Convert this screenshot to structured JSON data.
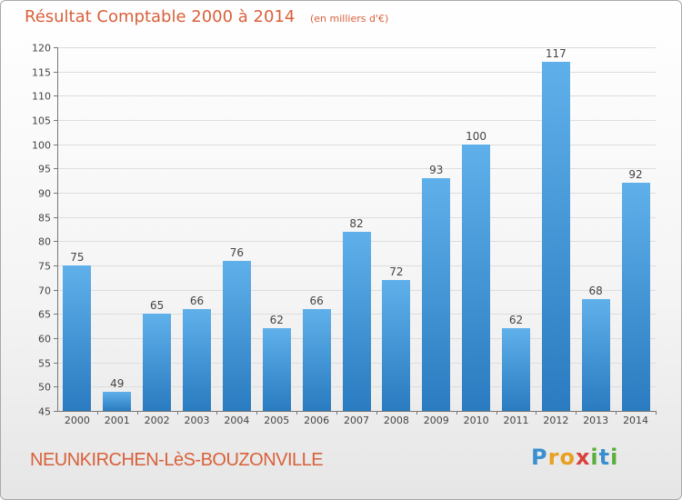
{
  "header": {
    "title": "Résultat Comptable 2000 à 2014",
    "subtitle": "(en milliers d'€)"
  },
  "footer": {
    "commune": "NEUNKIRCHEN-LèS-BOUZONVILLE",
    "logo": "Proxiti"
  },
  "colors": {
    "accent": "#d9603a",
    "bar_light": "#5fb0ea",
    "bar_dark": "#2a7bc0",
    "grid": "#dddddd",
    "axis": "#777777"
  },
  "chart_data": {
    "type": "bar",
    "title": "Résultat Comptable 2000 à 2014",
    "subtitle": "(en milliers d'€)",
    "xlabel": "",
    "ylabel": "",
    "categories": [
      "2000",
      "2001",
      "2002",
      "2003",
      "2004",
      "2005",
      "2006",
      "2007",
      "2008",
      "2009",
      "2010",
      "2011",
      "2012",
      "2013",
      "2014"
    ],
    "values": [
      75,
      49,
      65,
      66,
      76,
      62,
      66,
      82,
      72,
      93,
      100,
      62,
      117,
      68,
      92
    ],
    "ylim": [
      45,
      120
    ],
    "yticks": [
      45,
      50,
      55,
      60,
      65,
      70,
      75,
      80,
      85,
      90,
      95,
      100,
      105,
      110,
      115,
      120
    ],
    "grid": true,
    "data_labels": true
  }
}
